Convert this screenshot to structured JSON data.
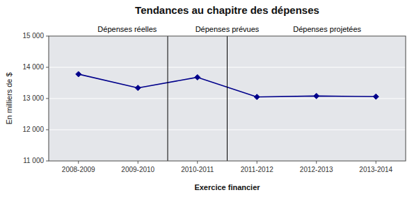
{
  "chart_data": {
    "type": "line",
    "title": "Tendances au chapitre des dépenses",
    "xlabel": "Exercice financier",
    "ylabel": "En milliers de $",
    "categories": [
      "2008-2009",
      "2009-2010",
      "2010-2011",
      "2011-2012",
      "2012-2013",
      "2013-2014"
    ],
    "values": [
      13780,
      13340,
      13680,
      13050,
      13080,
      13060
    ],
    "color": "#00008B",
    "marker": "diamond",
    "ylim": [
      11000,
      15000
    ],
    "yticks": [
      {
        "value": 11000,
        "label": "11 000"
      },
      {
        "value": 12000,
        "label": "12 000"
      },
      {
        "value": 13000,
        "label": "13 000"
      },
      {
        "value": 14000,
        "label": "14 000"
      },
      {
        "value": 15000,
        "label": "15 000"
      }
    ],
    "grid": true,
    "vlines": [
      1.5,
      2.5
    ],
    "annotations": [
      "Dépenses réelles",
      "Dépenses prévues",
      "Dépenses projetées"
    ]
  }
}
